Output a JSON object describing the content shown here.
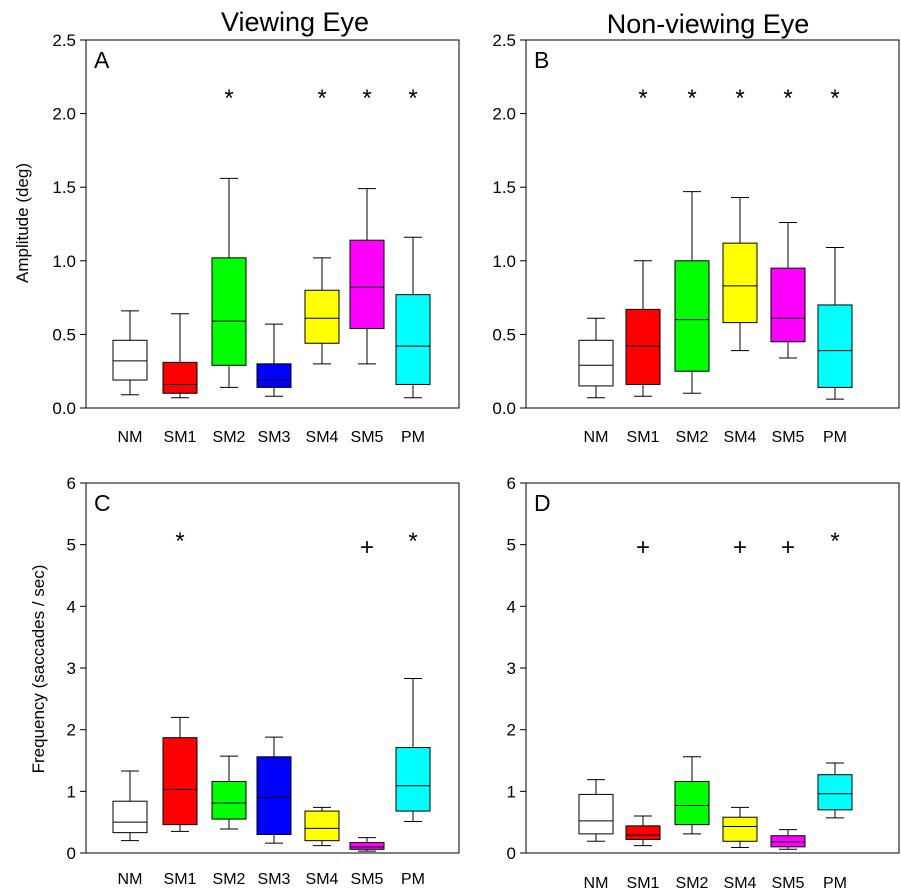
{
  "titles": {
    "left": "Viewing Eye",
    "right": "Non-viewing Eye"
  },
  "ylabels": {
    "amplitude": "Amplitude (deg)",
    "frequency": "Frequency (saccades / sec)"
  },
  "colors": {
    "NM": "#ffffff",
    "SM1": "#ff0000",
    "SM2": "#00ff00",
    "SM3": "#0000ff",
    "SM4": "#ffff00",
    "SM5": "#ff00ff",
    "PM": "#00ffff"
  },
  "chart_data": [
    {
      "type": "box",
      "panel": "A",
      "ylim": [
        0,
        2.5
      ],
      "yticks": [
        "0.0",
        "0.5",
        "1.0",
        "1.5",
        "2.0",
        "2.5"
      ],
      "categories": [
        "NM",
        "SM1",
        "SM2",
        "SM3",
        "SM4",
        "SM5",
        "PM"
      ],
      "boxes": [
        {
          "min": 0.09,
          "q1": 0.19,
          "median": 0.32,
          "q3": 0.46,
          "max": 0.66
        },
        {
          "min": 0.07,
          "q1": 0.1,
          "median": 0.16,
          "q3": 0.31,
          "max": 0.64
        },
        {
          "min": 0.14,
          "q1": 0.29,
          "median": 0.59,
          "q3": 1.02,
          "max": 1.56
        },
        {
          "min": 0.08,
          "q1": 0.14,
          "median": 0.19,
          "q3": 0.3,
          "max": 0.57
        },
        {
          "min": 0.3,
          "q1": 0.44,
          "median": 0.61,
          "q3": 0.8,
          "max": 1.02
        },
        {
          "min": 0.3,
          "q1": 0.54,
          "median": 0.82,
          "q3": 1.14,
          "max": 1.49
        },
        {
          "min": 0.07,
          "q1": 0.16,
          "median": 0.42,
          "q3": 0.77,
          "max": 1.16
        }
      ],
      "markers": [
        {
          "category": "SM2",
          "symbol": "*"
        },
        {
          "category": "SM4",
          "symbol": "*"
        },
        {
          "category": "SM5",
          "symbol": "*"
        },
        {
          "category": "PM",
          "symbol": "*"
        }
      ]
    },
    {
      "type": "box",
      "panel": "B",
      "ylim": [
        0,
        2.5
      ],
      "yticks": [
        "0.0",
        "0.5",
        "1.0",
        "1.5",
        "2.0",
        "2.5"
      ],
      "categories": [
        "NM",
        "SM1",
        "SM2",
        "SM4",
        "SM5",
        "PM"
      ],
      "boxes": [
        {
          "min": 0.07,
          "q1": 0.15,
          "median": 0.29,
          "q3": 0.46,
          "max": 0.61
        },
        {
          "min": 0.08,
          "q1": 0.16,
          "median": 0.42,
          "q3": 0.67,
          "max": 1.0
        },
        {
          "min": 0.1,
          "q1": 0.25,
          "median": 0.6,
          "q3": 1.0,
          "max": 1.47
        },
        {
          "min": 0.39,
          "q1": 0.58,
          "median": 0.83,
          "q3": 1.12,
          "max": 1.43
        },
        {
          "min": 0.34,
          "q1": 0.45,
          "median": 0.61,
          "q3": 0.95,
          "max": 1.26
        },
        {
          "min": 0.06,
          "q1": 0.14,
          "median": 0.39,
          "q3": 0.7,
          "max": 1.09
        }
      ],
      "markers": [
        {
          "category": "SM1",
          "symbol": "*"
        },
        {
          "category": "SM2",
          "symbol": "*"
        },
        {
          "category": "SM4",
          "symbol": "*"
        },
        {
          "category": "SM5",
          "symbol": "*"
        },
        {
          "category": "PM",
          "symbol": "*"
        }
      ]
    },
    {
      "type": "box",
      "panel": "C",
      "ylim": [
        0,
        6
      ],
      "yticks": [
        "0",
        "1",
        "2",
        "3",
        "4",
        "5",
        "6"
      ],
      "categories": [
        "NM",
        "SM1",
        "SM2",
        "SM3",
        "SM4",
        "SM5",
        "PM"
      ],
      "boxes": [
        {
          "min": 0.2,
          "q1": 0.33,
          "median": 0.5,
          "q3": 0.84,
          "max": 1.33
        },
        {
          "min": 0.35,
          "q1": 0.46,
          "median": 1.03,
          "q3": 1.87,
          "max": 2.2
        },
        {
          "min": 0.39,
          "q1": 0.55,
          "median": 0.81,
          "q3": 1.16,
          "max": 1.57
        },
        {
          "min": 0.16,
          "q1": 0.3,
          "median": 0.9,
          "q3": 1.56,
          "max": 1.88
        },
        {
          "min": 0.12,
          "q1": 0.2,
          "median": 0.4,
          "q3": 0.68,
          "max": 0.74
        },
        {
          "min": 0.03,
          "q1": 0.06,
          "median": 0.1,
          "q3": 0.17,
          "max": 0.25
        },
        {
          "min": 0.51,
          "q1": 0.68,
          "median": 1.09,
          "q3": 1.71,
          "max": 2.83
        }
      ],
      "markers": [
        {
          "category": "SM1",
          "symbol": "*"
        },
        {
          "category": "SM5",
          "symbol": "+"
        },
        {
          "category": "PM",
          "symbol": "*"
        }
      ]
    },
    {
      "type": "box",
      "panel": "D",
      "ylim": [
        0,
        6
      ],
      "yticks": [
        "0",
        "1",
        "2",
        "3",
        "4",
        "5",
        "6"
      ],
      "categories": [
        "NM",
        "SM1",
        "SM2",
        "SM4",
        "SM5",
        "PM"
      ],
      "boxes": [
        {
          "min": 0.19,
          "q1": 0.31,
          "median": 0.52,
          "q3": 0.95,
          "max": 1.19
        },
        {
          "min": 0.12,
          "q1": 0.22,
          "median": 0.29,
          "q3": 0.44,
          "max": 0.6
        },
        {
          "min": 0.31,
          "q1": 0.46,
          "median": 0.77,
          "q3": 1.16,
          "max": 1.56
        },
        {
          "min": 0.09,
          "q1": 0.19,
          "median": 0.43,
          "q3": 0.58,
          "max": 0.74
        },
        {
          "min": 0.06,
          "q1": 0.1,
          "median": 0.18,
          "q3": 0.28,
          "max": 0.38
        },
        {
          "min": 0.57,
          "q1": 0.7,
          "median": 0.96,
          "q3": 1.27,
          "max": 1.46
        }
      ],
      "markers": [
        {
          "category": "SM1",
          "symbol": "+"
        },
        {
          "category": "SM4",
          "symbol": "+"
        },
        {
          "category": "SM5",
          "symbol": "+"
        },
        {
          "category": "PM",
          "symbol": "*"
        }
      ]
    }
  ]
}
